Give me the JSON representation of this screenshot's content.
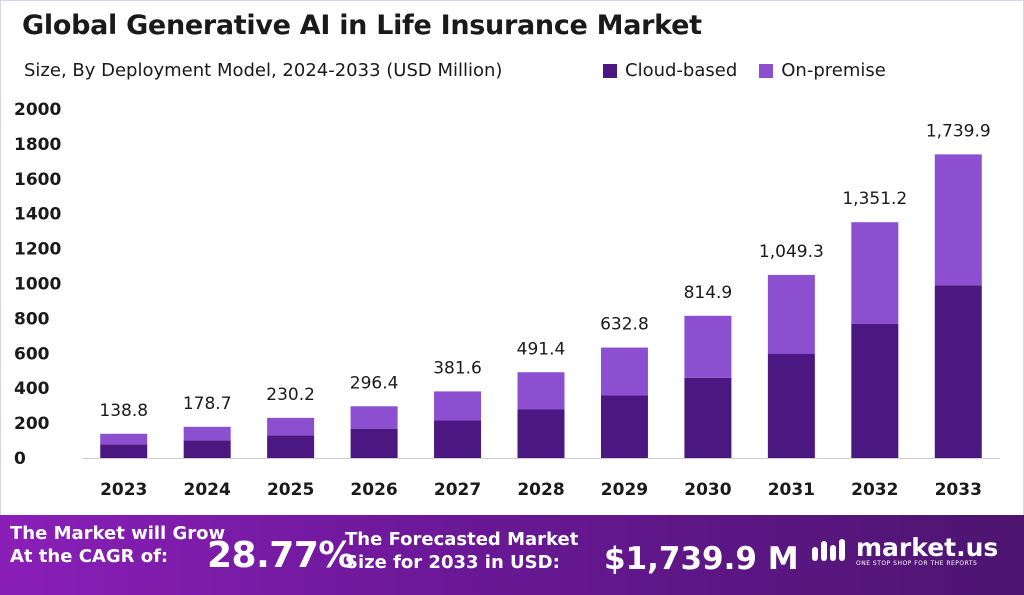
{
  "header": {
    "title": "Global Generative AI in Life Insurance Market",
    "subtitle": "Size, By Deployment Model, 2024-2033 (USD Million)"
  },
  "legend": [
    {
      "label": "Cloud-based",
      "color": "#4b1781"
    },
    {
      "label": "On-premise",
      "color": "#8c4fd0"
    }
  ],
  "chart_data": {
    "type": "bar",
    "stacked": true,
    "categories": [
      "2023",
      "2024",
      "2025",
      "2026",
      "2027",
      "2028",
      "2029",
      "2030",
      "2031",
      "2032",
      "2033"
    ],
    "series": [
      {
        "name": "Cloud-based",
        "color": "#4b1781",
        "values": [
          78,
          100,
          130,
          168,
          215,
          278,
          358,
          460,
          596,
          768,
          990
        ]
      },
      {
        "name": "On-premise",
        "color": "#8c4fd0",
        "values": [
          60.8,
          78.7,
          100.2,
          128.4,
          166.6,
          213.4,
          274.8,
          354.9,
          453.3,
          583.2,
          749.9
        ]
      }
    ],
    "totals": [
      138.8,
      178.7,
      230.2,
      296.4,
      381.6,
      491.4,
      632.8,
      814.9,
      1049.3,
      1351.2,
      1739.9
    ],
    "total_labels": [
      "138.8",
      "178.7",
      "230.2",
      "296.4",
      "381.6",
      "491.4",
      "632.8",
      "814.9",
      "1,049.3",
      "1,351.2",
      "1,739.9"
    ],
    "yticks": [
      0,
      200,
      400,
      600,
      800,
      1000,
      1200,
      1400,
      1600,
      1800,
      2000
    ],
    "ylim": [
      0,
      2000
    ],
    "grid": false
  },
  "banner": {
    "cagr_label": "The Market will Grow At the CAGR of:",
    "cagr_value": "28.77%",
    "forecast_label": "The Forecasted Market Size for 2033 in USD:",
    "forecast_value": "$1,739.9 M",
    "logo_text": "market.us",
    "logo_tagline": "ONE STOP SHOP FOR THE REPORTS"
  }
}
